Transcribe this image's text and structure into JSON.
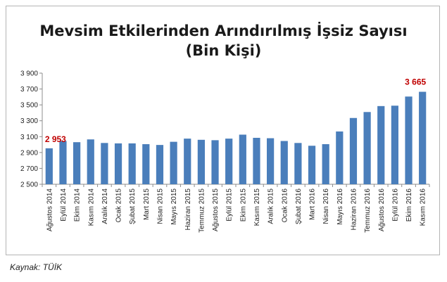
{
  "title_line1": "Mevsim Etkilerinden Arındırılmış İşsiz Sayısı",
  "title_line2": "(Bin Kişi)",
  "source": "Kaynak: TÜİK",
  "chart_data": {
    "type": "bar",
    "title": "Mevsim Etkilerinden Arındırılmış İşsiz Sayısı (Bin Kişi)",
    "xlabel": "",
    "ylabel": "",
    "ylim": [
      2500,
      3900
    ],
    "yticks": [
      2500,
      2700,
      2900,
      3100,
      3300,
      3500,
      3700,
      3900
    ],
    "ytick_labels": [
      "2 500",
      "2 700",
      "2 900",
      "3 100",
      "3 300",
      "3 500",
      "3 700",
      "3 900"
    ],
    "grid": false,
    "legend": "none",
    "bar_color": "#4a7ebb",
    "annotation_color": "#c00000",
    "categories": [
      "Ağustos 2014",
      "Eylül 2014",
      "Ekim 2014",
      "Kasım 2014",
      "Aralık 2014",
      "Ocak 2015",
      "Şubat 2015",
      "Mart 2015",
      "Nisan 2015",
      "Mayıs 2015",
      "Haziran 2015",
      "Temmuz 2015",
      "Ağustos 2015",
      "Eylül 2015",
      "Ekim 2015",
      "Kasım 2015",
      "Aralık 2015",
      "Ocak 2016",
      "Şubat 2016",
      "Mart 2016",
      "Nisan 2016",
      "Mayıs 2016",
      "Haziran 2016",
      "Temmuz 2016",
      "Ağustos 2016",
      "Eylül 2016",
      "Ekim 2016",
      "Kasım 2016"
    ],
    "values": [
      2953,
      3045,
      3030,
      3065,
      3020,
      3015,
      3015,
      3005,
      2995,
      3035,
      3075,
      3060,
      3055,
      3075,
      3125,
      3085,
      3080,
      3045,
      3020,
      2985,
      3005,
      3165,
      3335,
      3410,
      3485,
      3490,
      3605,
      3665
    ],
    "annotations": [
      {
        "category": "Ağustos 2014",
        "label": "2 953"
      },
      {
        "category": "Kasım 2016",
        "label": "3 665"
      }
    ]
  }
}
